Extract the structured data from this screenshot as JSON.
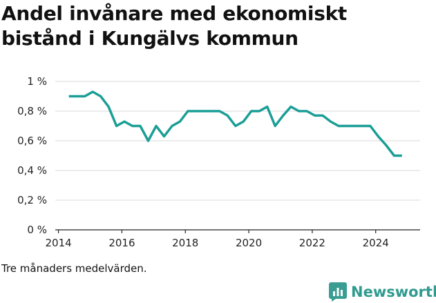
{
  "title": "Andel invånare med ekonomiskt bistånd i Kungälvs kommun",
  "note": "Tre månaders medelvärden.",
  "brand": {
    "name": "Newsworthy",
    "icon": "bar-chart-logo-icon",
    "color": "#3a9d92"
  },
  "colors": {
    "line": "#1a9e96",
    "grid": "#d9d9d9",
    "axis": "#222222"
  },
  "chart_data": {
    "type": "line",
    "title": "Andel invånare med ekonomiskt bistånd i Kungälvs kommun",
    "xlabel": "",
    "ylabel": "",
    "xlim": [
      2013.9,
      2025.4
    ],
    "ylim": [
      0,
      1
    ],
    "grid": true,
    "x_ticks": [
      2014,
      2016,
      2018,
      2020,
      2022,
      2024
    ],
    "y_ticks": [
      0,
      0.2,
      0.4,
      0.6,
      0.8,
      1
    ],
    "y_tick_labels": [
      "0 %",
      "0,2 %",
      "0,4 %",
      "0,6 %",
      "0,8 %",
      "1 %"
    ],
    "series": [
      {
        "x": [
          2014.33,
          2014.58,
          2014.83,
          2015.08,
          2015.33,
          2015.58,
          2015.83,
          2016.08,
          2016.33,
          2016.58,
          2016.83,
          2017.08,
          2017.33,
          2017.58,
          2017.83,
          2018.08,
          2018.33,
          2018.58,
          2018.83,
          2019.08,
          2019.33,
          2019.58,
          2019.83,
          2020.08,
          2020.33,
          2020.58,
          2020.83,
          2021.08,
          2021.33,
          2021.58,
          2021.83,
          2022.08,
          2022.33,
          2022.58,
          2022.83,
          2023.08,
          2023.33,
          2023.58,
          2023.83,
          2024.08,
          2024.33,
          2024.58,
          2024.83
        ],
        "values": [
          0.9,
          0.9,
          0.9,
          0.93,
          0.9,
          0.83,
          0.7,
          0.73,
          0.7,
          0.7,
          0.6,
          0.7,
          0.63,
          0.7,
          0.73,
          0.8,
          0.8,
          0.8,
          0.8,
          0.8,
          0.77,
          0.7,
          0.73,
          0.8,
          0.8,
          0.83,
          0.7,
          0.77,
          0.83,
          0.8,
          0.8,
          0.77,
          0.77,
          0.73,
          0.7,
          0.7,
          0.7,
          0.7,
          0.7,
          0.63,
          0.57,
          0.5,
          0.5
        ]
      }
    ]
  }
}
